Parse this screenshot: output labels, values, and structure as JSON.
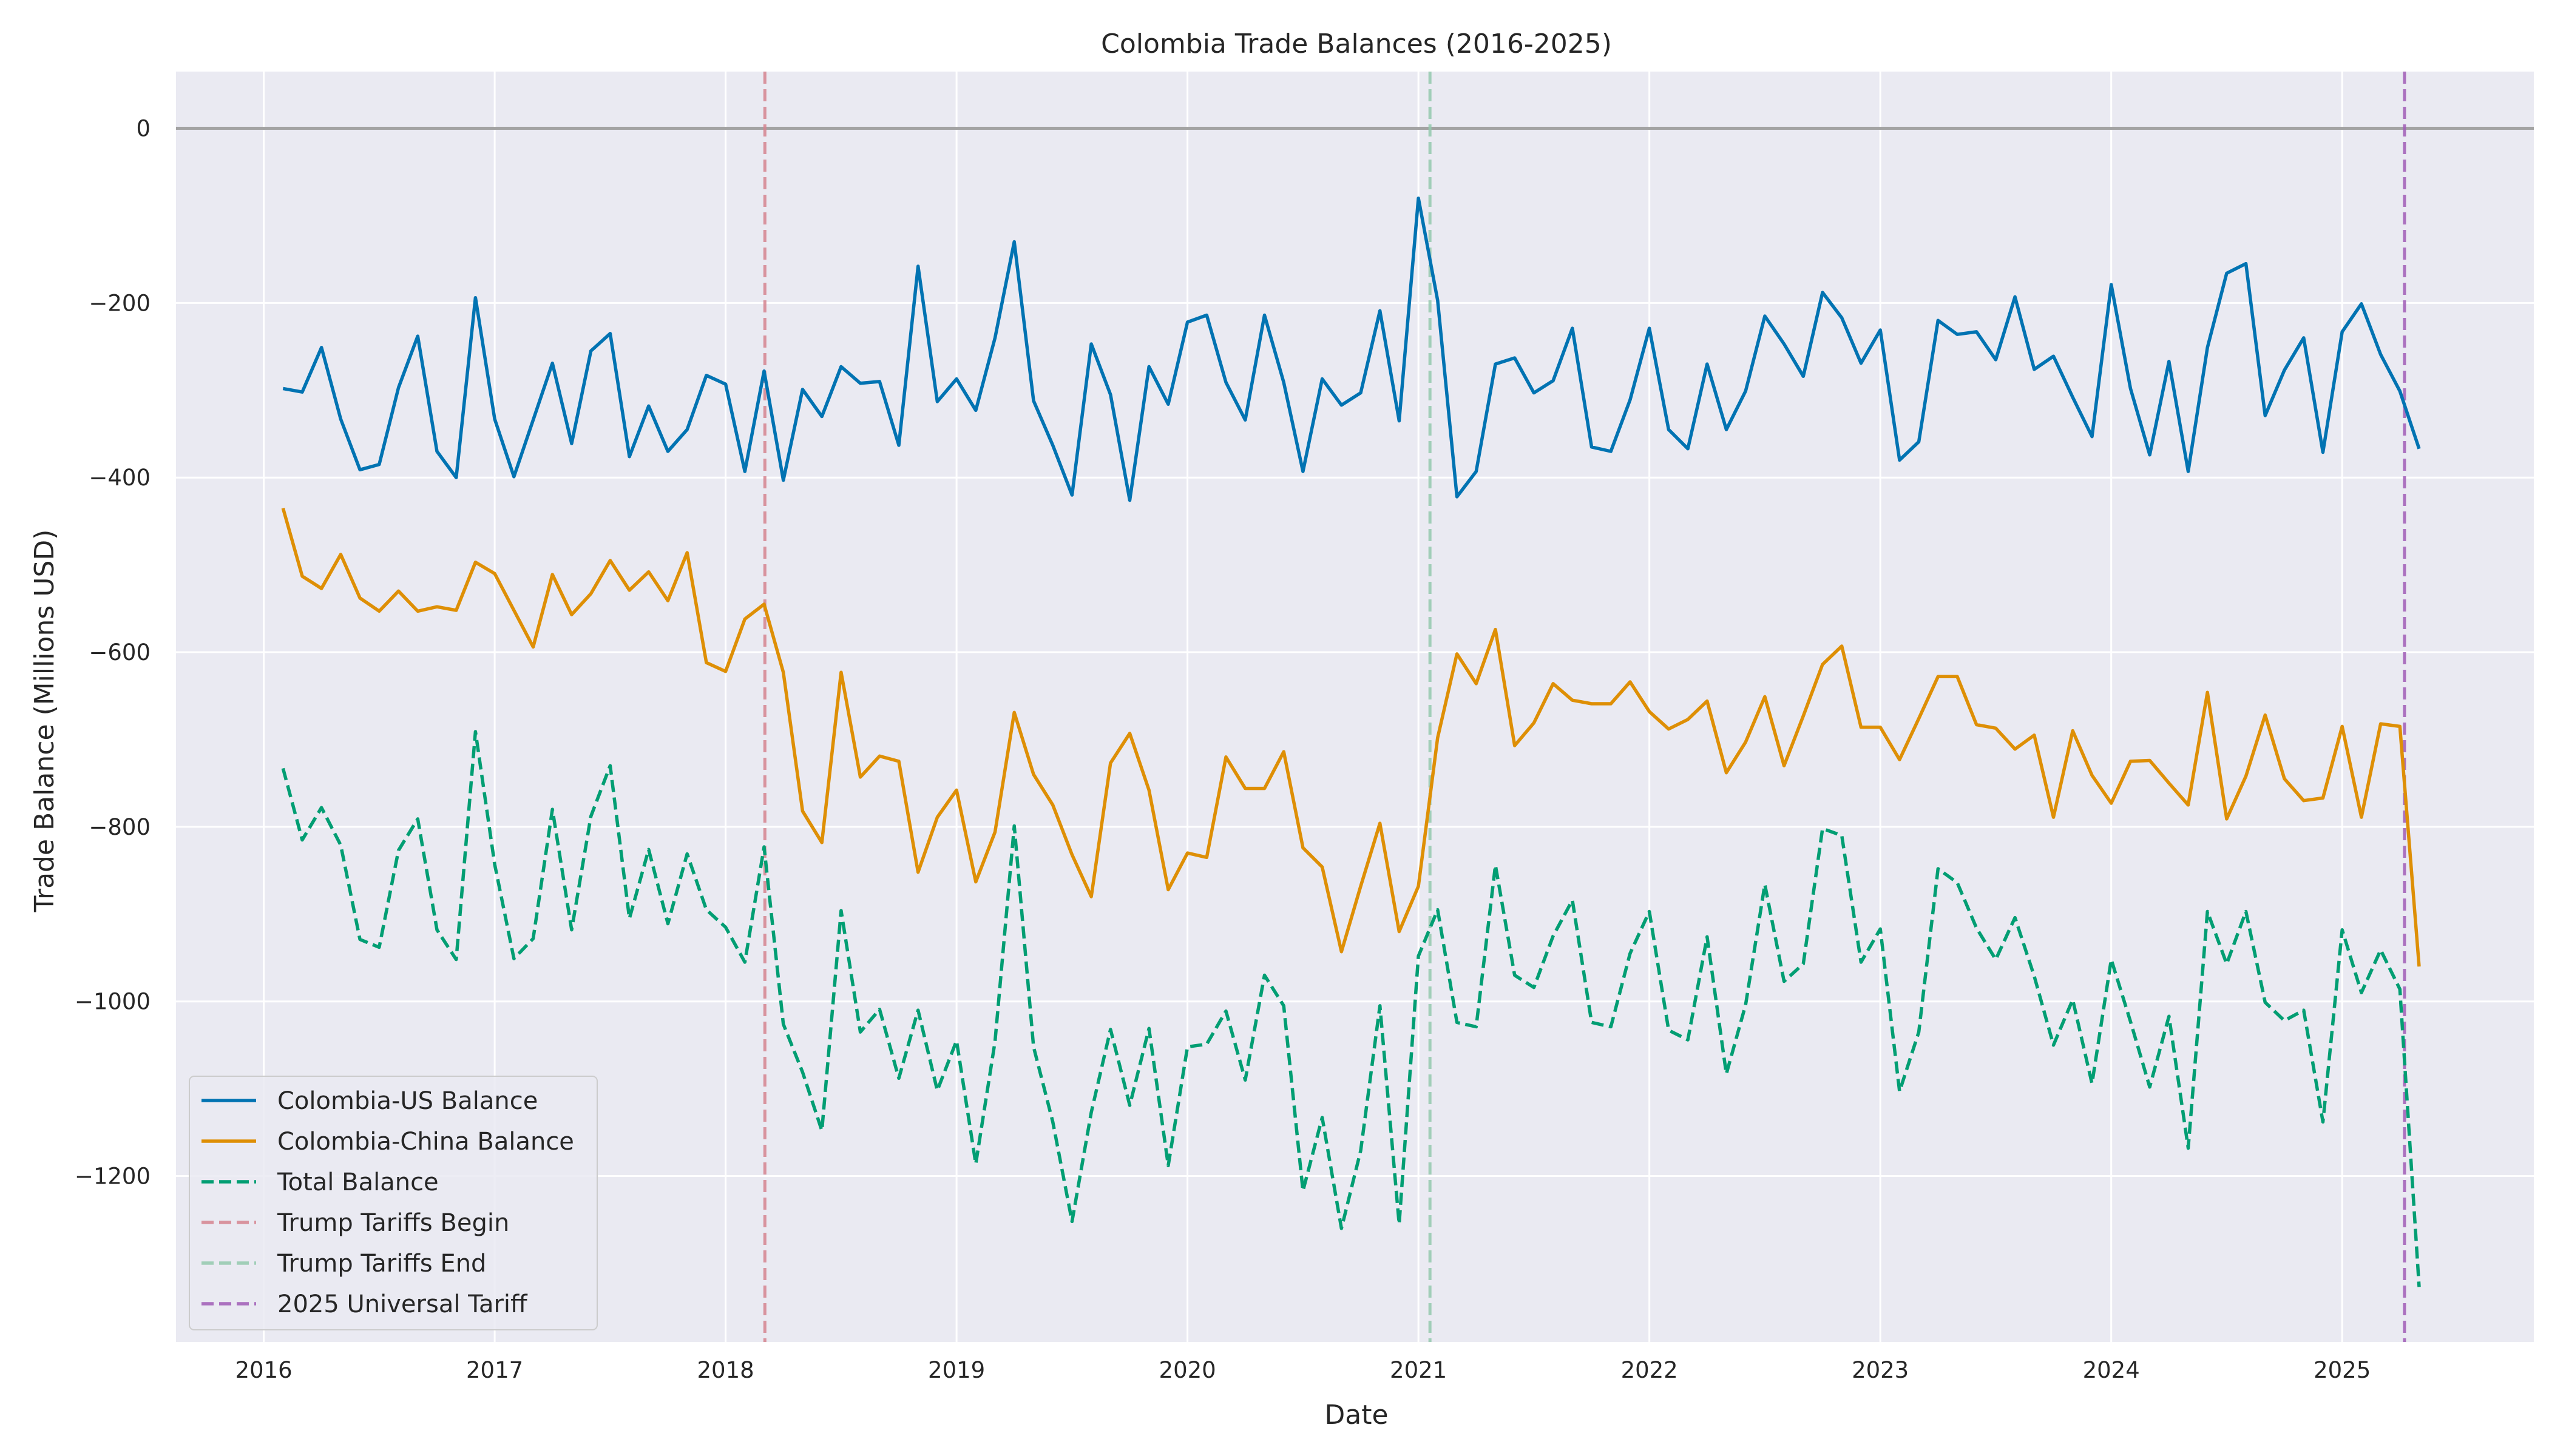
{
  "chart_data": {
    "type": "line",
    "title": "Colombia Trade Balances (2016-2025)",
    "xlabel": "Date",
    "ylabel": "Trade Balance (Millions USD)",
    "x_axis": {
      "min_year": 2015.62,
      "max_year": 2025.83,
      "ticks": [
        {
          "value": 2016,
          "label": "2016"
        },
        {
          "value": 2017,
          "label": "2017"
        },
        {
          "value": 2018,
          "label": "2018"
        },
        {
          "value": 2019,
          "label": "2019"
        },
        {
          "value": 2020,
          "label": "2020"
        },
        {
          "value": 2021,
          "label": "2021"
        },
        {
          "value": 2022,
          "label": "2022"
        },
        {
          "value": 2023,
          "label": "2023"
        },
        {
          "value": 2024,
          "label": "2024"
        },
        {
          "value": 2025,
          "label": "2025"
        }
      ]
    },
    "y_axis": {
      "min": -1390,
      "max": 65,
      "ticks": [
        {
          "value": 0,
          "label": "0"
        },
        {
          "value": -200,
          "label": "−200"
        },
        {
          "value": -400,
          "label": "−400"
        },
        {
          "value": -600,
          "label": "−600"
        },
        {
          "value": -800,
          "label": "−800"
        },
        {
          "value": -1000,
          "label": "−1000"
        },
        {
          "value": -1200,
          "label": "−1200"
        }
      ]
    },
    "grid": true,
    "legend_position": "lower-left",
    "start_month": "2016-01",
    "series": [
      {
        "name": "Colombia-US Balance",
        "color": "#0173b2",
        "dash": "solid",
        "values": [
          -298,
          -302,
          -251,
          -333,
          -391,
          -385,
          -297,
          -238,
          -370,
          -400,
          -194,
          -333,
          -399,
          -334,
          -269,
          -361,
          -255,
          -235,
          -376,
          -318,
          -370,
          -345,
          -283,
          -293,
          -393,
          -278,
          -403,
          -299,
          -330,
          -273,
          -292,
          -290,
          -363,
          -158,
          -313,
          -287,
          -323,
          -240,
          -130,
          -312,
          -363,
          -420,
          -247,
          -305,
          -426,
          -273,
          -316,
          -222,
          -214,
          -291,
          -334,
          -214,
          -291,
          -393,
          -287,
          -317,
          -303,
          -209,
          -335,
          -80,
          -197,
          -422,
          -393,
          -270,
          -263,
          -303,
          -289,
          -229,
          -365,
          -370,
          -311,
          -229,
          -345,
          -367,
          -270,
          -345,
          -301,
          -215,
          -247,
          -284,
          -188,
          -217,
          -269,
          -231,
          -380,
          -359,
          -220,
          -236,
          -233,
          -265,
          -193,
          -276,
          -261,
          -308,
          -353,
          -179,
          -298,
          -374,
          -267,
          -393,
          -251,
          -166,
          -155,
          -329,
          -277,
          -240,
          -371,
          -233,
          -201,
          -259,
          -301,
          -367
        ]
      },
      {
        "name": "Colombia-China Balance",
        "color": "#de8f05",
        "dash": "solid",
        "values": [
          -435,
          -513,
          -527,
          -488,
          -538,
          -553,
          -530,
          -553,
          -548,
          -552,
          -497,
          -510,
          -552,
          -594,
          -511,
          -557,
          -533,
          -495,
          -529,
          -508,
          -541,
          -486,
          -612,
          -622,
          -562,
          -545,
          -623,
          -782,
          -818,
          -623,
          -743,
          -719,
          -725,
          -852,
          -789,
          -758,
          -863,
          -806,
          -669,
          -740,
          -775,
          -832,
          -880,
          -727,
          -693,
          -758,
          -872,
          -830,
          -835,
          -720,
          -756,
          -756,
          -714,
          -824,
          -846,
          -943,
          -868,
          -796,
          -920,
          -868,
          -698,
          -602,
          -636,
          -574,
          -707,
          -681,
          -636,
          -655,
          -659,
          -659,
          -634,
          -668,
          -688,
          -677,
          -656,
          -738,
          -703,
          -651,
          -730,
          -673,
          -614,
          -593,
          -686,
          -686,
          -723,
          -676,
          -628,
          -628,
          -683,
          -687,
          -711,
          -695,
          -789,
          -690,
          -741,
          -773,
          -725,
          -724,
          -750,
          -775,
          -646,
          -791,
          -742,
          -672,
          -745,
          -770,
          -767,
          -685,
          -789,
          -682,
          -685,
          -960
        ]
      },
      {
        "name": "Total Balance",
        "color": "#029e73",
        "dash": "dashed",
        "values": [
          -733,
          -815,
          -778,
          -821,
          -929,
          -938,
          -827,
          -791,
          -918,
          -952,
          -691,
          -843,
          -951,
          -928,
          -780,
          -918,
          -788,
          -730,
          -905,
          -826,
          -911,
          -831,
          -895,
          -915,
          -955,
          -823,
          -1026,
          -1081,
          -1148,
          -896,
          -1035,
          -1009,
          -1088,
          -1010,
          -1102,
          -1045,
          -1186,
          -1046,
          -799,
          -1052,
          -1138,
          -1252,
          -1127,
          -1032,
          -1119,
          -1031,
          -1188,
          -1052,
          -1049,
          -1011,
          -1090,
          -970,
          -1005,
          -1217,
          -1133,
          -1260,
          -1171,
          -1005,
          -1255,
          -948,
          -895,
          -1024,
          -1029,
          -844,
          -970,
          -984,
          -925,
          -884,
          -1024,
          -1029,
          -945,
          -897,
          -1033,
          -1044,
          -926,
          -1083,
          -1004,
          -866,
          -977,
          -957,
          -802,
          -810,
          -955,
          -917,
          -1103,
          -1035,
          -848,
          -864,
          -916,
          -952,
          -904,
          -971,
          -1050,
          -998,
          -1094,
          -952,
          -1023,
          -1098,
          -1017,
          -1168,
          -897,
          -957,
          -897,
          -1001,
          -1022,
          -1010,
          -1138,
          -918,
          -990,
          -941,
          -986,
          -1327
        ]
      }
    ],
    "vertical_lines": [
      {
        "name": "Trump Tariffs Begin",
        "x": 2018.17,
        "color": "#d5848f"
      },
      {
        "name": "Trump Tariffs End",
        "x": 2021.05,
        "color": "#94c9ae"
      },
      {
        "name": "2025 Universal Tariff",
        "x": 2025.27,
        "color": "#a05cb6"
      }
    ],
    "reference_line": {
      "y": 0,
      "color": "#a3a3a3"
    }
  }
}
